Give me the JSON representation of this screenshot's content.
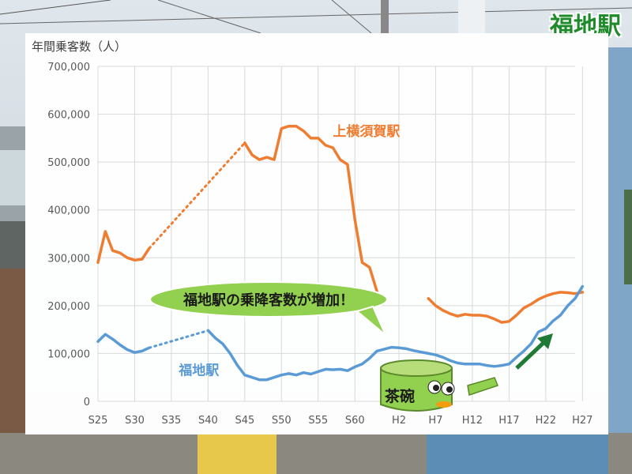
{
  "station_title": "福地駅",
  "colors": {
    "series_kamiyokosuka": "#ef7d31",
    "series_fukuchi": "#5b9bd5",
    "title_green": "#1f8a2a",
    "callout_fill": "#92d050",
    "arrow_green": "#1f7a35",
    "grid": "#d9d9d9"
  },
  "callout": {
    "text": "福地駅の乗降客数が増加！"
  },
  "mascot": {
    "text": "茶碗",
    "icon": "tea-bowl-mascot-icon"
  },
  "chart_data": {
    "type": "line",
    "ylabel": "年間乗客数（人）",
    "y_ticks": [
      "700,000",
      "600,000",
      "500,000",
      "400,000",
      "300,000",
      "200,000",
      "100,000",
      "0"
    ],
    "x_ticks": [
      "S25",
      "S30",
      "S35",
      "S40",
      "S45",
      "S50",
      "S55",
      "S60",
      "H2",
      "H7",
      "H12",
      "H17",
      "H22",
      "H27"
    ],
    "ylim": [
      0,
      700000
    ],
    "grid": true,
    "series": [
      {
        "name": "上横須賀駅",
        "color": "#ef7d31",
        "segments": [
          {
            "style": "solid",
            "points": [
              [
                "S25",
                290000
              ],
              [
                "S26",
                355000
              ],
              [
                "S27",
                315000
              ],
              [
                "S28",
                310000
              ],
              [
                "S29",
                300000
              ],
              [
                "S30",
                295000
              ],
              [
                "S31",
                297000
              ],
              [
                "S32",
                320000
              ]
            ]
          },
          {
            "style": "dotted",
            "points": [
              [
                "S32",
                320000
              ],
              [
                "S45",
                540000
              ]
            ]
          },
          {
            "style": "solid",
            "points": [
              [
                "S45",
                540000
              ],
              [
                "S46",
                515000
              ],
              [
                "S47",
                505000
              ],
              [
                "S48",
                510000
              ],
              [
                "S49",
                505000
              ],
              [
                "S50",
                570000
              ],
              [
                "S51",
                575000
              ],
              [
                "S52",
                575000
              ],
              [
                "S53",
                565000
              ],
              [
                "S54",
                550000
              ],
              [
                "S55",
                550000
              ],
              [
                "S56",
                535000
              ],
              [
                "S57",
                530000
              ],
              [
                "S58",
                505000
              ],
              [
                "S59",
                495000
              ],
              [
                "S60",
                380000
              ],
              [
                "S61",
                290000
              ],
              [
                "S62",
                280000
              ],
              [
                "S63",
                230000
              ]
            ]
          },
          {
            "style": "solid",
            "points": [
              [
                "H6",
                215000
              ],
              [
                "H7",
                200000
              ],
              [
                "H8",
                190000
              ],
              [
                "H9",
                183000
              ],
              [
                "H10",
                178000
              ],
              [
                "H11",
                182000
              ],
              [
                "H12",
                180000
              ],
              [
                "H13",
                180000
              ],
              [
                "H14",
                178000
              ],
              [
                "H15",
                172000
              ],
              [
                "H16",
                165000
              ],
              [
                "H17",
                167000
              ],
              [
                "H18",
                180000
              ],
              [
                "H19",
                195000
              ],
              [
                "H20",
                203000
              ],
              [
                "H21",
                213000
              ],
              [
                "H22",
                220000
              ],
              [
                "H23",
                225000
              ],
              [
                "H24",
                228000
              ],
              [
                "H25",
                227000
              ],
              [
                "H26",
                225000
              ],
              [
                "H27",
                228000
              ]
            ]
          }
        ]
      },
      {
        "name": "福地駅",
        "color": "#5b9bd5",
        "segments": [
          {
            "style": "solid",
            "points": [
              [
                "S25",
                125000
              ],
              [
                "S26",
                140000
              ],
              [
                "S27",
                130000
              ],
              [
                "S28",
                118000
              ],
              [
                "S29",
                108000
              ],
              [
                "S30",
                102000
              ],
              [
                "S31",
                105000
              ],
              [
                "S32",
                112000
              ]
            ]
          },
          {
            "style": "dotted",
            "points": [
              [
                "S32",
                112000
              ],
              [
                "S40",
                148000
              ]
            ]
          },
          {
            "style": "solid",
            "points": [
              [
                "S40",
                148000
              ],
              [
                "S41",
                132000
              ],
              [
                "S42",
                120000
              ],
              [
                "S43",
                100000
              ],
              [
                "S44",
                75000
              ],
              [
                "S45",
                55000
              ],
              [
                "S46",
                50000
              ],
              [
                "S47",
                45000
              ],
              [
                "S48",
                45000
              ],
              [
                "S49",
                50000
              ],
              [
                "S50",
                55000
              ],
              [
                "S51",
                58000
              ],
              [
                "S52",
                55000
              ],
              [
                "S53",
                60000
              ],
              [
                "S54",
                57000
              ],
              [
                "S55",
                62000
              ],
              [
                "S56",
                67000
              ],
              [
                "S57",
                66000
              ],
              [
                "S58",
                67000
              ],
              [
                "S59",
                64000
              ],
              [
                "S60",
                72000
              ],
              [
                "S61",
                78000
              ],
              [
                "S62",
                90000
              ],
              [
                "S63",
                105000
              ],
              [
                "H1",
                113000
              ],
              [
                "H2",
                112000
              ],
              [
                "H3",
                110000
              ],
              [
                "H4",
                106000
              ],
              [
                "H5",
                103000
              ],
              [
                "H6",
                100000
              ],
              [
                "H7",
                97000
              ],
              [
                "H8",
                92000
              ],
              [
                "H9",
                85000
              ],
              [
                "H10",
                80000
              ],
              [
                "H11",
                78000
              ],
              [
                "H12",
                78000
              ],
              [
                "H13",
                78000
              ],
              [
                "H14",
                75000
              ],
              [
                "H15",
                73000
              ],
              [
                "H16",
                75000
              ],
              [
                "H17",
                78000
              ],
              [
                "H18",
                92000
              ],
              [
                "H19",
                105000
              ],
              [
                "H20",
                120000
              ],
              [
                "H21",
                145000
              ],
              [
                "H22",
                152000
              ],
              [
                "H23",
                168000
              ],
              [
                "H24",
                180000
              ],
              [
                "H25",
                200000
              ],
              [
                "H26",
                215000
              ],
              [
                "H27",
                240000
              ]
            ]
          }
        ]
      }
    ]
  }
}
